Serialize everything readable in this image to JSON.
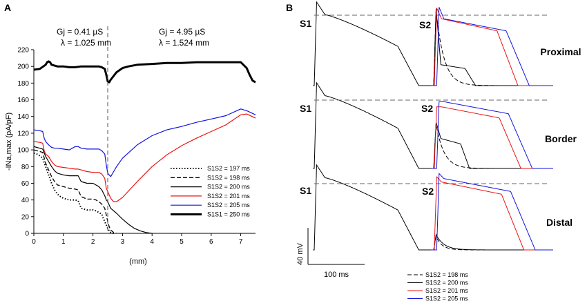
{
  "chart_data": [
    {
      "panel": "A",
      "type": "line",
      "xlabel": "(mm)",
      "ylabel": "-INa,max (pA/pF)",
      "xlim": [
        0,
        7.5
      ],
      "ylim": [
        0,
        220
      ],
      "xticks": [
        0,
        1,
        2,
        3,
        4,
        5,
        6,
        7
      ],
      "yticks": [
        0,
        20,
        40,
        60,
        80,
        100,
        120,
        140,
        160,
        180,
        200,
        220
      ],
      "annotations": {
        "left_gj": "Gj = 0.41 µS",
        "left_lambda": "λ = 1.025 mm",
        "right_gj": "Gj = 4.95 µS",
        "right_lambda": "λ = 1.524 mm"
      },
      "border_x": 2.5,
      "series": [
        {
          "name": "S1S2 = 197 ms",
          "color": "#000000",
          "style": "dotted",
          "width": 2,
          "x": [
            0,
            0.1,
            0.2,
            0.3,
            0.4,
            0.5,
            0.6,
            0.7,
            0.8,
            0.9,
            1.0,
            1.2,
            1.4,
            1.5,
            1.6,
            1.8,
            2.0,
            2.1,
            2.2,
            2.3,
            2.35,
            2.4,
            2.45,
            2.5,
            2.55,
            2.6,
            2.65,
            2.7
          ],
          "y": [
            96,
            95,
            93,
            90,
            80,
            70,
            60,
            52,
            47,
            44,
            42,
            40,
            40,
            39,
            30,
            28,
            28,
            27,
            25,
            23,
            18,
            14,
            10,
            6,
            3,
            1,
            0,
            0
          ]
        },
        {
          "name": "S1S2 = 198 ms",
          "color": "#000000",
          "style": "dashed",
          "width": 1.3,
          "x": [
            0,
            0.1,
            0.2,
            0.3,
            0.4,
            0.5,
            0.6,
            0.7,
            0.8,
            1.0,
            1.2,
            1.4,
            1.5,
            1.6,
            1.8,
            2.0,
            2.1,
            2.2,
            2.3,
            2.4,
            2.45,
            2.5,
            2.55,
            2.6,
            2.7,
            2.8
          ],
          "y": [
            100,
            99,
            98,
            97,
            84,
            76,
            68,
            62,
            58,
            56,
            54,
            53,
            52,
            44,
            41,
            41,
            40,
            38,
            35,
            30,
            22,
            14,
            8,
            4,
            1,
            0
          ]
        },
        {
          "name": "S1S2 = 200 ms",
          "color": "#000000",
          "style": "solid",
          "width": 1.2,
          "x": [
            0,
            0.1,
            0.2,
            0.3,
            0.4,
            0.5,
            0.6,
            0.7,
            0.8,
            1.0,
            1.2,
            1.4,
            1.5,
            1.6,
            1.8,
            2.0,
            2.1,
            2.2,
            2.3,
            2.4,
            2.45,
            2.5,
            2.55,
            2.6,
            2.8,
            3.0,
            3.2,
            3.4,
            3.6,
            3.8,
            4.0
          ],
          "y": [
            104,
            103,
            102,
            101,
            92,
            86,
            80,
            75,
            72,
            70,
            69,
            69,
            69,
            62,
            60,
            60,
            58,
            56,
            52,
            45,
            40,
            38,
            34,
            30,
            24,
            17,
            11,
            6,
            3,
            1,
            0
          ]
        },
        {
          "name": "S1S2 = 201 ms",
          "color": "#ee1111",
          "style": "solid",
          "width": 1.2,
          "x": [
            0,
            0.2,
            0.3,
            0.35,
            0.4,
            0.5,
            0.6,
            0.7,
            0.8,
            1.0,
            1.2,
            1.4,
            1.5,
            1.6,
            1.8,
            2.0,
            2.2,
            2.3,
            2.4,
            2.45,
            2.5,
            2.6,
            2.7,
            2.8,
            3.0,
            3.5,
            4.0,
            4.5,
            5.0,
            5.5,
            6.0,
            6.5,
            7.0,
            7.2,
            7.5
          ],
          "y": [
            110,
            109,
            108,
            99,
            95,
            92,
            86,
            82,
            80,
            79,
            78,
            77,
            77,
            76,
            74,
            73,
            73,
            71,
            66,
            54,
            50,
            42,
            38,
            38,
            43,
            62,
            80,
            94,
            105,
            114,
            122,
            130,
            142,
            143,
            138
          ]
        },
        {
          "name": "S1S2 = 205 ms",
          "color": "#1111dd",
          "style": "solid",
          "width": 1.2,
          "x": [
            0,
            0.2,
            0.3,
            0.35,
            0.4,
            0.5,
            0.6,
            0.7,
            0.8,
            1.0,
            1.2,
            1.4,
            1.5,
            1.6,
            1.8,
            2.0,
            2.2,
            2.3,
            2.4,
            2.45,
            2.5,
            2.6,
            2.7,
            2.8,
            3.0,
            3.5,
            4.0,
            4.5,
            5.0,
            5.5,
            6.0,
            6.5,
            7.0,
            7.2,
            7.5
          ],
          "y": [
            124,
            123,
            122,
            114,
            110,
            106,
            103,
            102,
            102,
            101,
            100,
            104,
            104,
            102,
            101,
            101,
            101,
            99,
            95,
            82,
            72,
            68,
            74,
            80,
            90,
            106,
            117,
            124,
            128,
            133,
            137,
            141,
            149,
            147,
            142
          ]
        },
        {
          "name": "S1S1 = 250 ms",
          "color": "#000000",
          "style": "solid",
          "width": 3,
          "x": [
            0,
            0.2,
            0.4,
            0.45,
            0.5,
            0.55,
            0.6,
            0.8,
            1.0,
            1.2,
            1.4,
            1.6,
            1.8,
            2.0,
            2.2,
            2.3,
            2.4,
            2.45,
            2.5,
            2.55,
            2.6,
            2.8,
            3.0,
            3.2,
            3.5,
            4.0,
            4.5,
            5.0,
            5.5,
            6.0,
            6.5,
            7.0,
            7.2,
            7.3,
            7.4,
            7.5
          ],
          "y": [
            196,
            197,
            202,
            205,
            206,
            205,
            202,
            200,
            200,
            199,
            199,
            200,
            200,
            200,
            200,
            199,
            197,
            190,
            182,
            181,
            184,
            193,
            198,
            200,
            202,
            203,
            204,
            204,
            205,
            205,
            205,
            205,
            198,
            190,
            183,
            181
          ]
        }
      ]
    },
    {
      "panel": "B",
      "type": "line",
      "rows": [
        "Proximal",
        "Border",
        "Distal"
      ],
      "labels_s1": "S1",
      "labels_s2": "S2",
      "scale_voltage": "40 mV",
      "scale_time": "100 ms",
      "legend": [
        {
          "name": "S1S2 = 198 ms",
          "color": "#000000",
          "style": "dashed"
        },
        {
          "name": "S1S2 = 200 ms",
          "color": "#000000",
          "style": "solid"
        },
        {
          "name": "S1S2 = 201 ms",
          "color": "#ee1111",
          "style": "solid"
        },
        {
          "name": "S1S2 = 205 ms",
          "color": "#1111dd",
          "style": "solid"
        }
      ]
    }
  ]
}
